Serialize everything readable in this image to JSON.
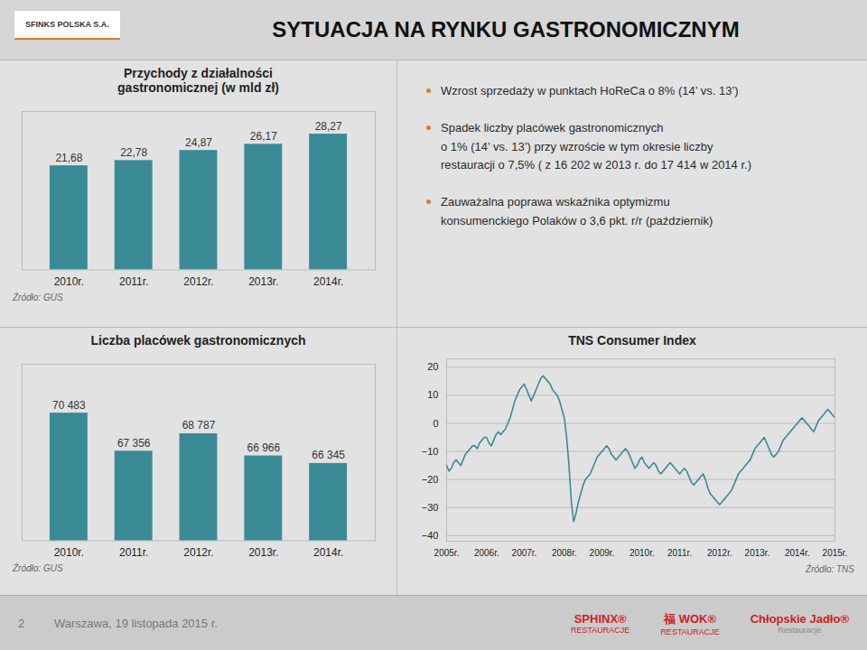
{
  "title": "SYTUACJA NA RYNKU GASTRONOMICZNYM",
  "annotations": [
    "SFINKS POLSKA S.A.",
    "Wzrost sprzedaży w punktach HoReCa o 8% (14’ vs. 13’)",
    "Spadek liczby placówek gastronomicznych\no 1% (14’ vs. 13’) przy wzroście w tym okresie liczby\nrestauracji  o 7,5% ( z 16 202 w 2013 r.  do 17 414 w 2014 r.)",
    "Zauważalna poprawa wskaźnika optymizmu\nkonsumenckiego Polaków o 3,6 pkt. r/r (październik)",
    "2",
    "Warszawa, 19 listopada 2015 r.",
    "SPHINX®",
    "RESTAURACJE",
    "福 WOK®",
    "RESTAURACJE",
    "Chłopskie Jadło®",
    "Restauracje"
  ],
  "chart_data": [
    {
      "type": "bar",
      "title": "Przychody z działalności\ngastronomicznej (w mld zł)",
      "categories": [
        "2010r.",
        "2011r.",
        "2012r.",
        "2013r.",
        "2014r."
      ],
      "values": [
        21.68,
        22.78,
        24.87,
        26.17,
        28.27
      ],
      "value_labels": [
        "21,68",
        "22,78",
        "24,87",
        "26,17",
        "28,27"
      ],
      "data_labels": true,
      "color": "#3a8a96",
      "ylim": [
        0,
        33
      ],
      "tick_labels": "x",
      "annotations": [
        "Źródło: GUS"
      ]
    },
    {
      "type": "bar",
      "title": "Liczba placówek gastronomicznych",
      "categories": [
        "2010r.",
        "2011r.",
        "2012r.",
        "2013r.",
        "2014r."
      ],
      "values": [
        70483,
        67356,
        68787,
        66966,
        66345
      ],
      "value_labels": [
        "70 483",
        "67 356",
        "68 787",
        "66 966",
        "66 345"
      ],
      "data_labels": true,
      "color": "#3a8a96",
      "ylim": [
        60000,
        74500
      ],
      "tick_labels": "x",
      "annotations": [
        "Źródło: GUS"
      ]
    },
    {
      "type": "line",
      "title": "TNS Consumer Index",
      "categories": [
        "2005r.",
        null,
        null,
        null,
        null,
        null,
        null,
        null,
        null,
        null,
        null,
        null,
        null,
        null,
        null,
        null,
        null,
        "2006r.",
        null,
        null,
        null,
        null,
        null,
        null,
        null,
        null,
        null,
        null,
        null,
        null,
        null,
        null,
        null,
        "2007r.",
        null,
        null,
        null,
        null,
        null,
        null,
        null,
        null,
        null,
        null,
        null,
        null,
        null,
        null,
        null,
        null,
        "2008r.",
        null,
        null,
        null,
        null,
        null,
        null,
        null,
        null,
        null,
        null,
        null,
        null,
        null,
        null,
        null,
        "2009r.",
        null,
        null,
        null,
        null,
        null,
        null,
        null,
        null,
        null,
        null,
        null,
        null,
        null,
        null,
        null,
        null,
        "2010r.",
        null,
        null,
        null,
        null,
        null,
        null,
        null,
        null,
        null,
        null,
        null,
        null,
        null,
        null,
        null,
        "2011r.",
        null,
        null,
        null,
        null,
        null,
        null,
        null,
        null,
        null,
        null,
        null,
        null,
        null,
        null,
        null,
        null,
        "2012r.",
        null,
        null,
        null,
        null,
        null,
        null,
        null,
        null,
        null,
        null,
        null,
        null,
        null,
        null,
        null,
        "2013r.",
        null,
        null,
        null,
        null,
        null,
        null,
        null,
        null,
        null,
        null,
        null,
        null,
        null,
        null,
        null,
        null,
        "2014r.",
        null,
        null,
        null,
        null,
        null,
        null,
        null,
        null,
        null,
        null,
        null,
        null,
        null,
        null,
        null,
        "2015r."
      ],
      "values": [
        -15,
        -17,
        -16,
        -14,
        -13,
        -14,
        -15,
        -13,
        -11,
        -10,
        -9,
        -8,
        -8,
        -9,
        -7,
        -6,
        -5,
        -5,
        -7,
        -8,
        -6,
        -4,
        -3,
        -4,
        -3,
        -2,
        0,
        2,
        5,
        8,
        10,
        12,
        13,
        14,
        12,
        10,
        8,
        10,
        12,
        14,
        16,
        17,
        16,
        15,
        14,
        12,
        11,
        10,
        8,
        5,
        2,
        -5,
        -15,
        -28,
        -35,
        -32,
        -28,
        -25,
        -22,
        -20,
        -19,
        -18,
        -16,
        -14,
        -12,
        -11,
        -10,
        -9,
        -8,
        -9,
        -11,
        -12,
        -13,
        -12,
        -11,
        -10,
        -9,
        -10,
        -12,
        -14,
        -16,
        -15,
        -13,
        -12,
        -14,
        -15,
        -16,
        -15,
        -14,
        -15,
        -17,
        -18,
        -17,
        -16,
        -15,
        -14,
        -15,
        -16,
        -17,
        -18,
        -17,
        -16,
        -17,
        -19,
        -21,
        -22,
        -21,
        -20,
        -19,
        -18,
        -20,
        -23,
        -25,
        -26,
        -27,
        -28,
        -29,
        -28,
        -27,
        -26,
        -25,
        -24,
        -22,
        -20,
        -18,
        -17,
        -16,
        -15,
        -14,
        -13,
        -11,
        -9,
        -8,
        -7,
        -6,
        -5,
        -7,
        -9,
        -11,
        -12,
        -11,
        -10,
        -8,
        -6,
        -5,
        -4,
        -3,
        -2,
        -1,
        0,
        1,
        2,
        1,
        0,
        -1,
        -2,
        -3,
        -1,
        1,
        2,
        3,
        4,
        5,
        4,
        3,
        2
      ],
      "color": "#3a8a96",
      "ylim": [
        -42,
        23
      ],
      "yticks": [
        20,
        10,
        0,
        -10,
        -20,
        -30,
        -40
      ],
      "grid": true,
      "annotations": [
        "Źródło: TNS"
      ]
    }
  ]
}
